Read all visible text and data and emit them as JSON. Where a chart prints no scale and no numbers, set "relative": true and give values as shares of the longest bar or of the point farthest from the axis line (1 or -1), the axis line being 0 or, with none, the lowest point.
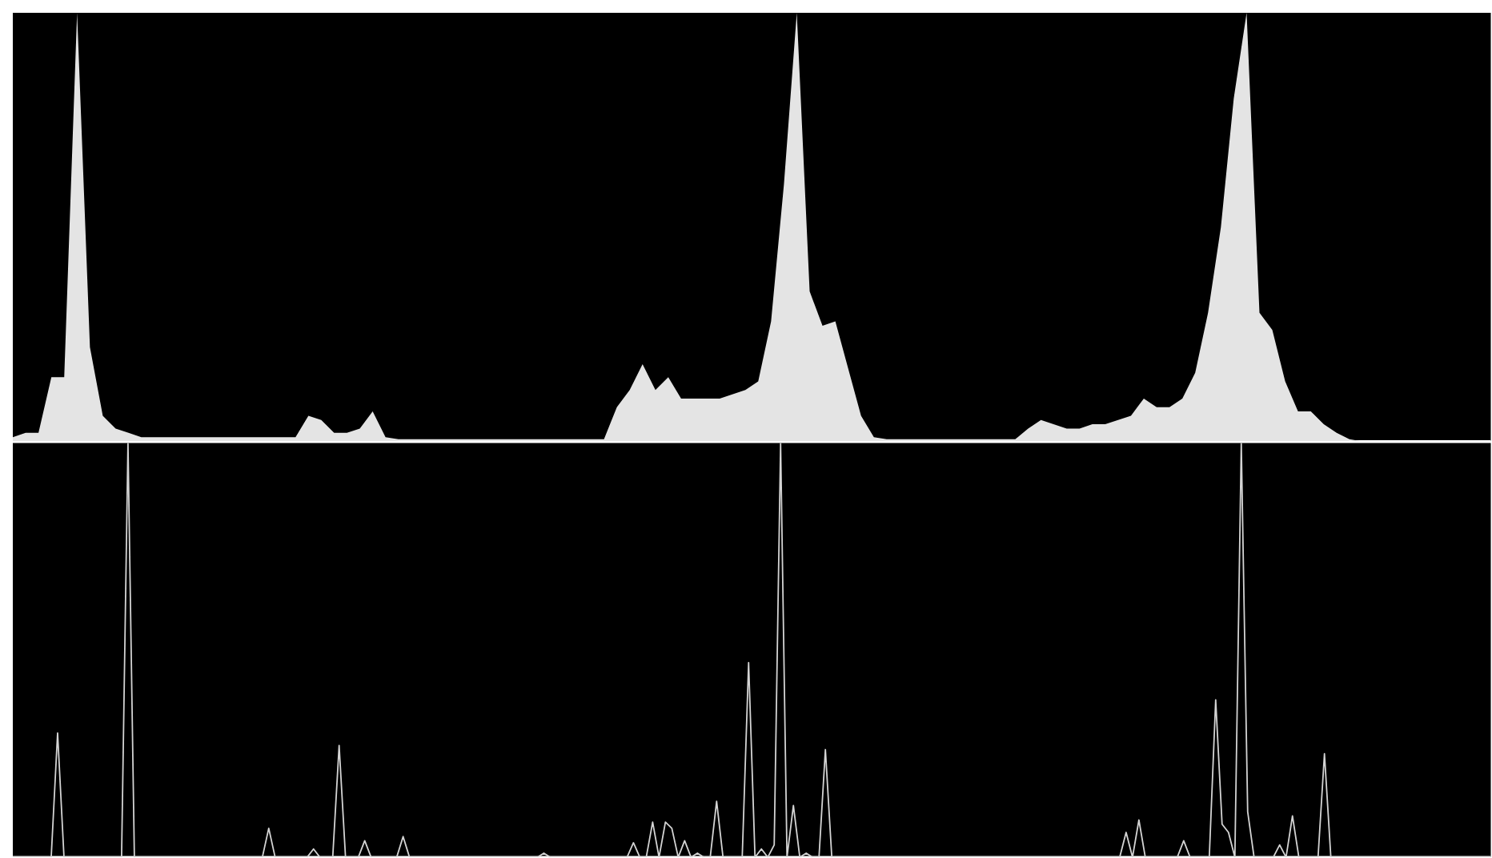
{
  "chart_data": [
    {
      "type": "area",
      "relative": true,
      "color": "#e4e4e4",
      "categories": [
        null,
        null,
        null,
        null,
        null,
        null,
        null,
        null,
        null,
        null,
        null,
        null,
        null,
        null,
        null,
        null,
        null,
        null,
        null,
        null,
        null,
        null,
        null,
        null,
        null,
        null,
        null,
        null,
        null,
        null,
        null,
        null,
        null,
        null,
        null,
        null,
        null,
        null,
        null,
        null,
        null,
        null,
        null,
        null,
        null,
        null,
        null,
        null,
        null,
        null,
        null,
        null,
        null,
        null,
        null,
        null,
        null,
        null,
        null,
        null,
        null,
        null,
        null,
        null,
        null,
        null,
        null,
        null,
        null,
        null,
        null,
        null,
        null,
        null,
        null,
        null,
        null,
        null,
        null,
        null,
        null,
        null,
        null,
        null,
        null,
        null,
        null,
        null,
        null,
        null,
        null,
        null,
        null,
        null,
        null,
        null,
        null,
        null,
        null,
        null,
        null,
        null,
        null,
        null,
        null,
        null,
        null,
        null,
        null,
        null,
        null,
        null,
        null,
        null,
        null,
        null
      ],
      "values": [
        0.01,
        0.02,
        0.02,
        0.15,
        0.15,
        1.0,
        0.22,
        0.06,
        0.03,
        0.02,
        0.01,
        0.01,
        0.01,
        0.01,
        0.01,
        0.01,
        0.01,
        0.01,
        0.01,
        0.01,
        0.01,
        0.01,
        0.01,
        0.06,
        0.05,
        0.02,
        0.02,
        0.03,
        0.07,
        0.01,
        0.005,
        0.005,
        0.005,
        0.005,
        0.005,
        0.005,
        0.005,
        0.005,
        0.005,
        0.005,
        0.005,
        0.005,
        0.005,
        0.005,
        0.005,
        0.005,
        0.005,
        0.08,
        0.12,
        0.18,
        0.12,
        0.15,
        0.1,
        0.1,
        0.1,
        0.1,
        0.11,
        0.12,
        0.14,
        0.28,
        0.6,
        1.0,
        0.35,
        0.27,
        0.28,
        0.17,
        0.06,
        0.01,
        0.005,
        0.005,
        0.005,
        0.005,
        0.005,
        0.005,
        0.005,
        0.005,
        0.005,
        0.005,
        0.005,
        0.03,
        0.05,
        0.04,
        0.03,
        0.03,
        0.04,
        0.04,
        0.05,
        0.06,
        0.1,
        0.08,
        0.08,
        0.1,
        0.16,
        0.3,
        0.5,
        0.8,
        1.0,
        0.3,
        0.26,
        0.14,
        0.07,
        0.07,
        0.04,
        0.02,
        0.005,
        0,
        0,
        0,
        0,
        0,
        0,
        0,
        0,
        0,
        0,
        0
      ]
    },
    {
      "type": "line",
      "relative": true,
      "color": "#d4d4d4",
      "categories": [
        null,
        null,
        null,
        null,
        null,
        null,
        null,
        null,
        null,
        null,
        null,
        null,
        null,
        null,
        null,
        null,
        null,
        null,
        null,
        null,
        null,
        null,
        null,
        null,
        null,
        null,
        null,
        null,
        null,
        null,
        null,
        null,
        null,
        null,
        null,
        null,
        null,
        null,
        null,
        null,
        null,
        null,
        null,
        null,
        null,
        null,
        null,
        null,
        null,
        null,
        null,
        null,
        null,
        null,
        null,
        null,
        null,
        null,
        null,
        null,
        null,
        null,
        null,
        null,
        null,
        null,
        null,
        null,
        null,
        null,
        null,
        null,
        null,
        null,
        null,
        null,
        null,
        null,
        null,
        null,
        null,
        null,
        null,
        null,
        null,
        null,
        null,
        null,
        null,
        null,
        null,
        null,
        null,
        null,
        null,
        null,
        null,
        null,
        null,
        null,
        null,
        null,
        null,
        null,
        null,
        null,
        null,
        null,
        null,
        null,
        null,
        null,
        null,
        null,
        null,
        null,
        null,
        null,
        null,
        null,
        null,
        null,
        null,
        null,
        null,
        null,
        null,
        null,
        null,
        null,
        null,
        null,
        null,
        null,
        null,
        null,
        null,
        null,
        null,
        null,
        null,
        null,
        null,
        null,
        null,
        null,
        null,
        null,
        null,
        null,
        null,
        null,
        null,
        null,
        null,
        null,
        null,
        null,
        null,
        null,
        null,
        null,
        null,
        null,
        null,
        null,
        null,
        null,
        null,
        null,
        null,
        null,
        null,
        null,
        null,
        null,
        null,
        null,
        null,
        null,
        null,
        null,
        null,
        null,
        null,
        null,
        null,
        null,
        null,
        null,
        null,
        null,
        null,
        null,
        null,
        null,
        null,
        null,
        null,
        null,
        null,
        null,
        null,
        null,
        null,
        null,
        null,
        null,
        null,
        null,
        null,
        null,
        null,
        null,
        null,
        null,
        null,
        null,
        null,
        null,
        null,
        null,
        null,
        null,
        null,
        null,
        null,
        null,
        null,
        null,
        null,
        null
      ],
      "values": [
        0,
        0,
        0,
        0,
        0,
        0,
        0,
        0.3,
        0,
        0,
        0,
        0,
        0,
        0,
        0,
        0,
        0,
        0,
        1.0,
        0,
        0,
        0,
        0,
        0,
        0,
        0,
        0,
        0,
        0,
        0,
        0,
        0,
        0,
        0,
        0,
        0,
        0,
        0,
        0,
        0,
        0.07,
        0,
        0,
        0,
        0,
        0,
        0,
        0.02,
        0,
        0,
        0,
        0.27,
        0,
        0,
        0,
        0.04,
        0,
        0,
        0,
        0,
        0,
        0.05,
        0,
        0,
        0,
        0,
        0,
        0,
        0,
        0,
        0,
        0,
        0,
        0,
        0,
        0,
        0,
        0,
        0,
        0,
        0,
        0,
        0,
        0.01,
        0,
        0,
        0,
        0,
        0,
        0,
        0,
        0,
        0,
        0,
        0,
        0,
        0,
        0.035,
        0,
        0,
        0.085,
        0,
        0.085,
        0.07,
        0,
        0.04,
        0,
        0.01,
        0,
        0,
        0.135,
        0,
        0,
        0,
        0,
        0.47,
        0,
        0.02,
        0,
        0.03,
        1.0,
        0,
        0.125,
        0,
        0.01,
        0,
        0,
        0.26,
        0,
        0,
        0,
        0,
        0,
        0,
        0,
        0,
        0,
        0,
        0,
        0,
        0,
        0,
        0,
        0,
        0,
        0,
        0,
        0,
        0,
        0,
        0,
        0,
        0,
        0,
        0,
        0,
        0,
        0,
        0,
        0,
        0,
        0,
        0,
        0,
        0,
        0,
        0,
        0,
        0,
        0,
        0,
        0,
        0,
        0,
        0.06,
        0,
        0.09,
        0,
        0,
        0,
        0,
        0,
        0,
        0.04,
        0,
        0,
        0,
        0,
        0.38,
        0.08,
        0.06,
        0,
        1.0,
        0.11,
        0,
        0,
        0,
        0,
        0.03,
        0,
        0.1,
        0,
        0,
        0,
        0,
        0.25,
        0,
        0,
        0,
        0,
        0,
        0,
        0,
        0,
        0,
        0,
        0,
        0,
        0,
        0,
        0,
        0,
        0,
        0,
        0,
        0,
        0,
        0,
        0,
        0,
        0,
        0
      ]
    }
  ]
}
